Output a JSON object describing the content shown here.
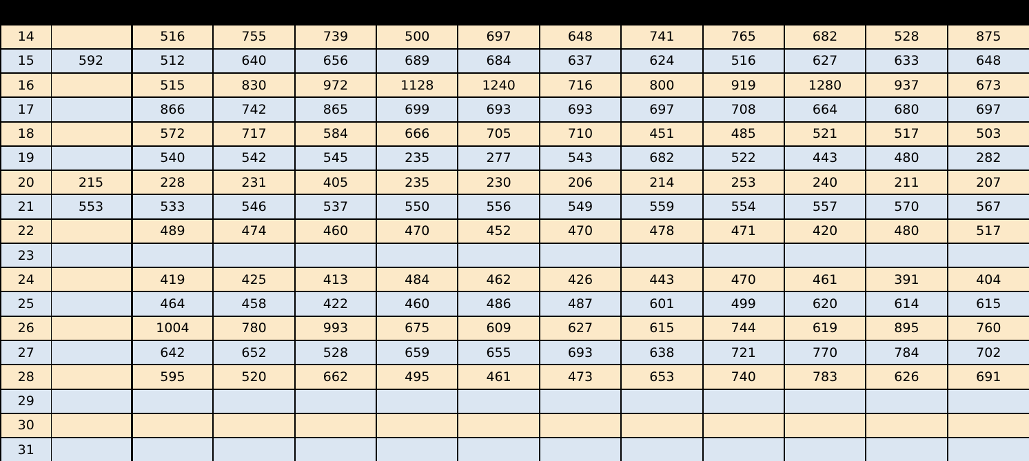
{
  "colors": {
    "band": "#000000",
    "border": "#000000",
    "text": "#000000",
    "row_tan": "#fce9c8",
    "row_blue": "#dbe6f2"
  },
  "table": {
    "column_count": 13,
    "rows": [
      {
        "row_number": "14",
        "cells": [
          "",
          "516",
          "755",
          "739",
          "500",
          "697",
          "648",
          "741",
          "765",
          "682",
          "528",
          "875"
        ]
      },
      {
        "row_number": "15",
        "cells": [
          "592",
          "512",
          "640",
          "656",
          "689",
          "684",
          "637",
          "624",
          "516",
          "627",
          "633",
          "648"
        ]
      },
      {
        "row_number": "16",
        "cells": [
          "",
          "515",
          "830",
          "972",
          "1128",
          "1240",
          "716",
          "800",
          "919",
          "1280",
          "937",
          "673"
        ]
      },
      {
        "row_number": "17",
        "cells": [
          "",
          "866",
          "742",
          "865",
          "699",
          "693",
          "693",
          "697",
          "708",
          "664",
          "680",
          "697"
        ]
      },
      {
        "row_number": "18",
        "cells": [
          "",
          "572",
          "717",
          "584",
          "666",
          "705",
          "710",
          "451",
          "485",
          "521",
          "517",
          "503"
        ]
      },
      {
        "row_number": "19",
        "cells": [
          "",
          "540",
          "542",
          "545",
          "235",
          "277",
          "543",
          "682",
          "522",
          "443",
          "480",
          "282"
        ]
      },
      {
        "row_number": "20",
        "cells": [
          "215",
          "228",
          "231",
          "405",
          "235",
          "230",
          "206",
          "214",
          "253",
          "240",
          "211",
          "207"
        ]
      },
      {
        "row_number": "21",
        "cells": [
          "553",
          "533",
          "546",
          "537",
          "550",
          "556",
          "549",
          "559",
          "554",
          "557",
          "570",
          "567"
        ]
      },
      {
        "row_number": "22",
        "cells": [
          "",
          "489",
          "474",
          "460",
          "470",
          "452",
          "470",
          "478",
          "471",
          "420",
          "480",
          "517"
        ]
      },
      {
        "row_number": "23",
        "cells": [
          "",
          "",
          "",
          "",
          "",
          "",
          "",
          "",
          "",
          "",
          "",
          ""
        ]
      },
      {
        "row_number": "24",
        "cells": [
          "",
          "419",
          "425",
          "413",
          "484",
          "462",
          "426",
          "443",
          "470",
          "461",
          "391",
          "404"
        ]
      },
      {
        "row_number": "25",
        "cells": [
          "",
          "464",
          "458",
          "422",
          "460",
          "486",
          "487",
          "601",
          "499",
          "620",
          "614",
          "615"
        ]
      },
      {
        "row_number": "26",
        "cells": [
          "",
          "1004",
          "780",
          "993",
          "675",
          "609",
          "627",
          "615",
          "744",
          "619",
          "895",
          "760"
        ]
      },
      {
        "row_number": "27",
        "cells": [
          "",
          "642",
          "652",
          "528",
          "659",
          "655",
          "693",
          "638",
          "721",
          "770",
          "784",
          "702"
        ]
      },
      {
        "row_number": "28",
        "cells": [
          "",
          "595",
          "520",
          "662",
          "495",
          "461",
          "473",
          "653",
          "740",
          "783",
          "626",
          "691"
        ]
      },
      {
        "row_number": "29",
        "cells": [
          "",
          "",
          "",
          "",
          "",
          "",
          "",
          "",
          "",
          "",
          "",
          ""
        ]
      },
      {
        "row_number": "30",
        "cells": [
          "",
          "",
          "",
          "",
          "",
          "",
          "",
          "",
          "",
          "",
          "",
          ""
        ]
      },
      {
        "row_number": "31",
        "cells": [
          "",
          "",
          "",
          "",
          "",
          "",
          "",
          "",
          "",
          "",
          "",
          ""
        ]
      }
    ]
  }
}
